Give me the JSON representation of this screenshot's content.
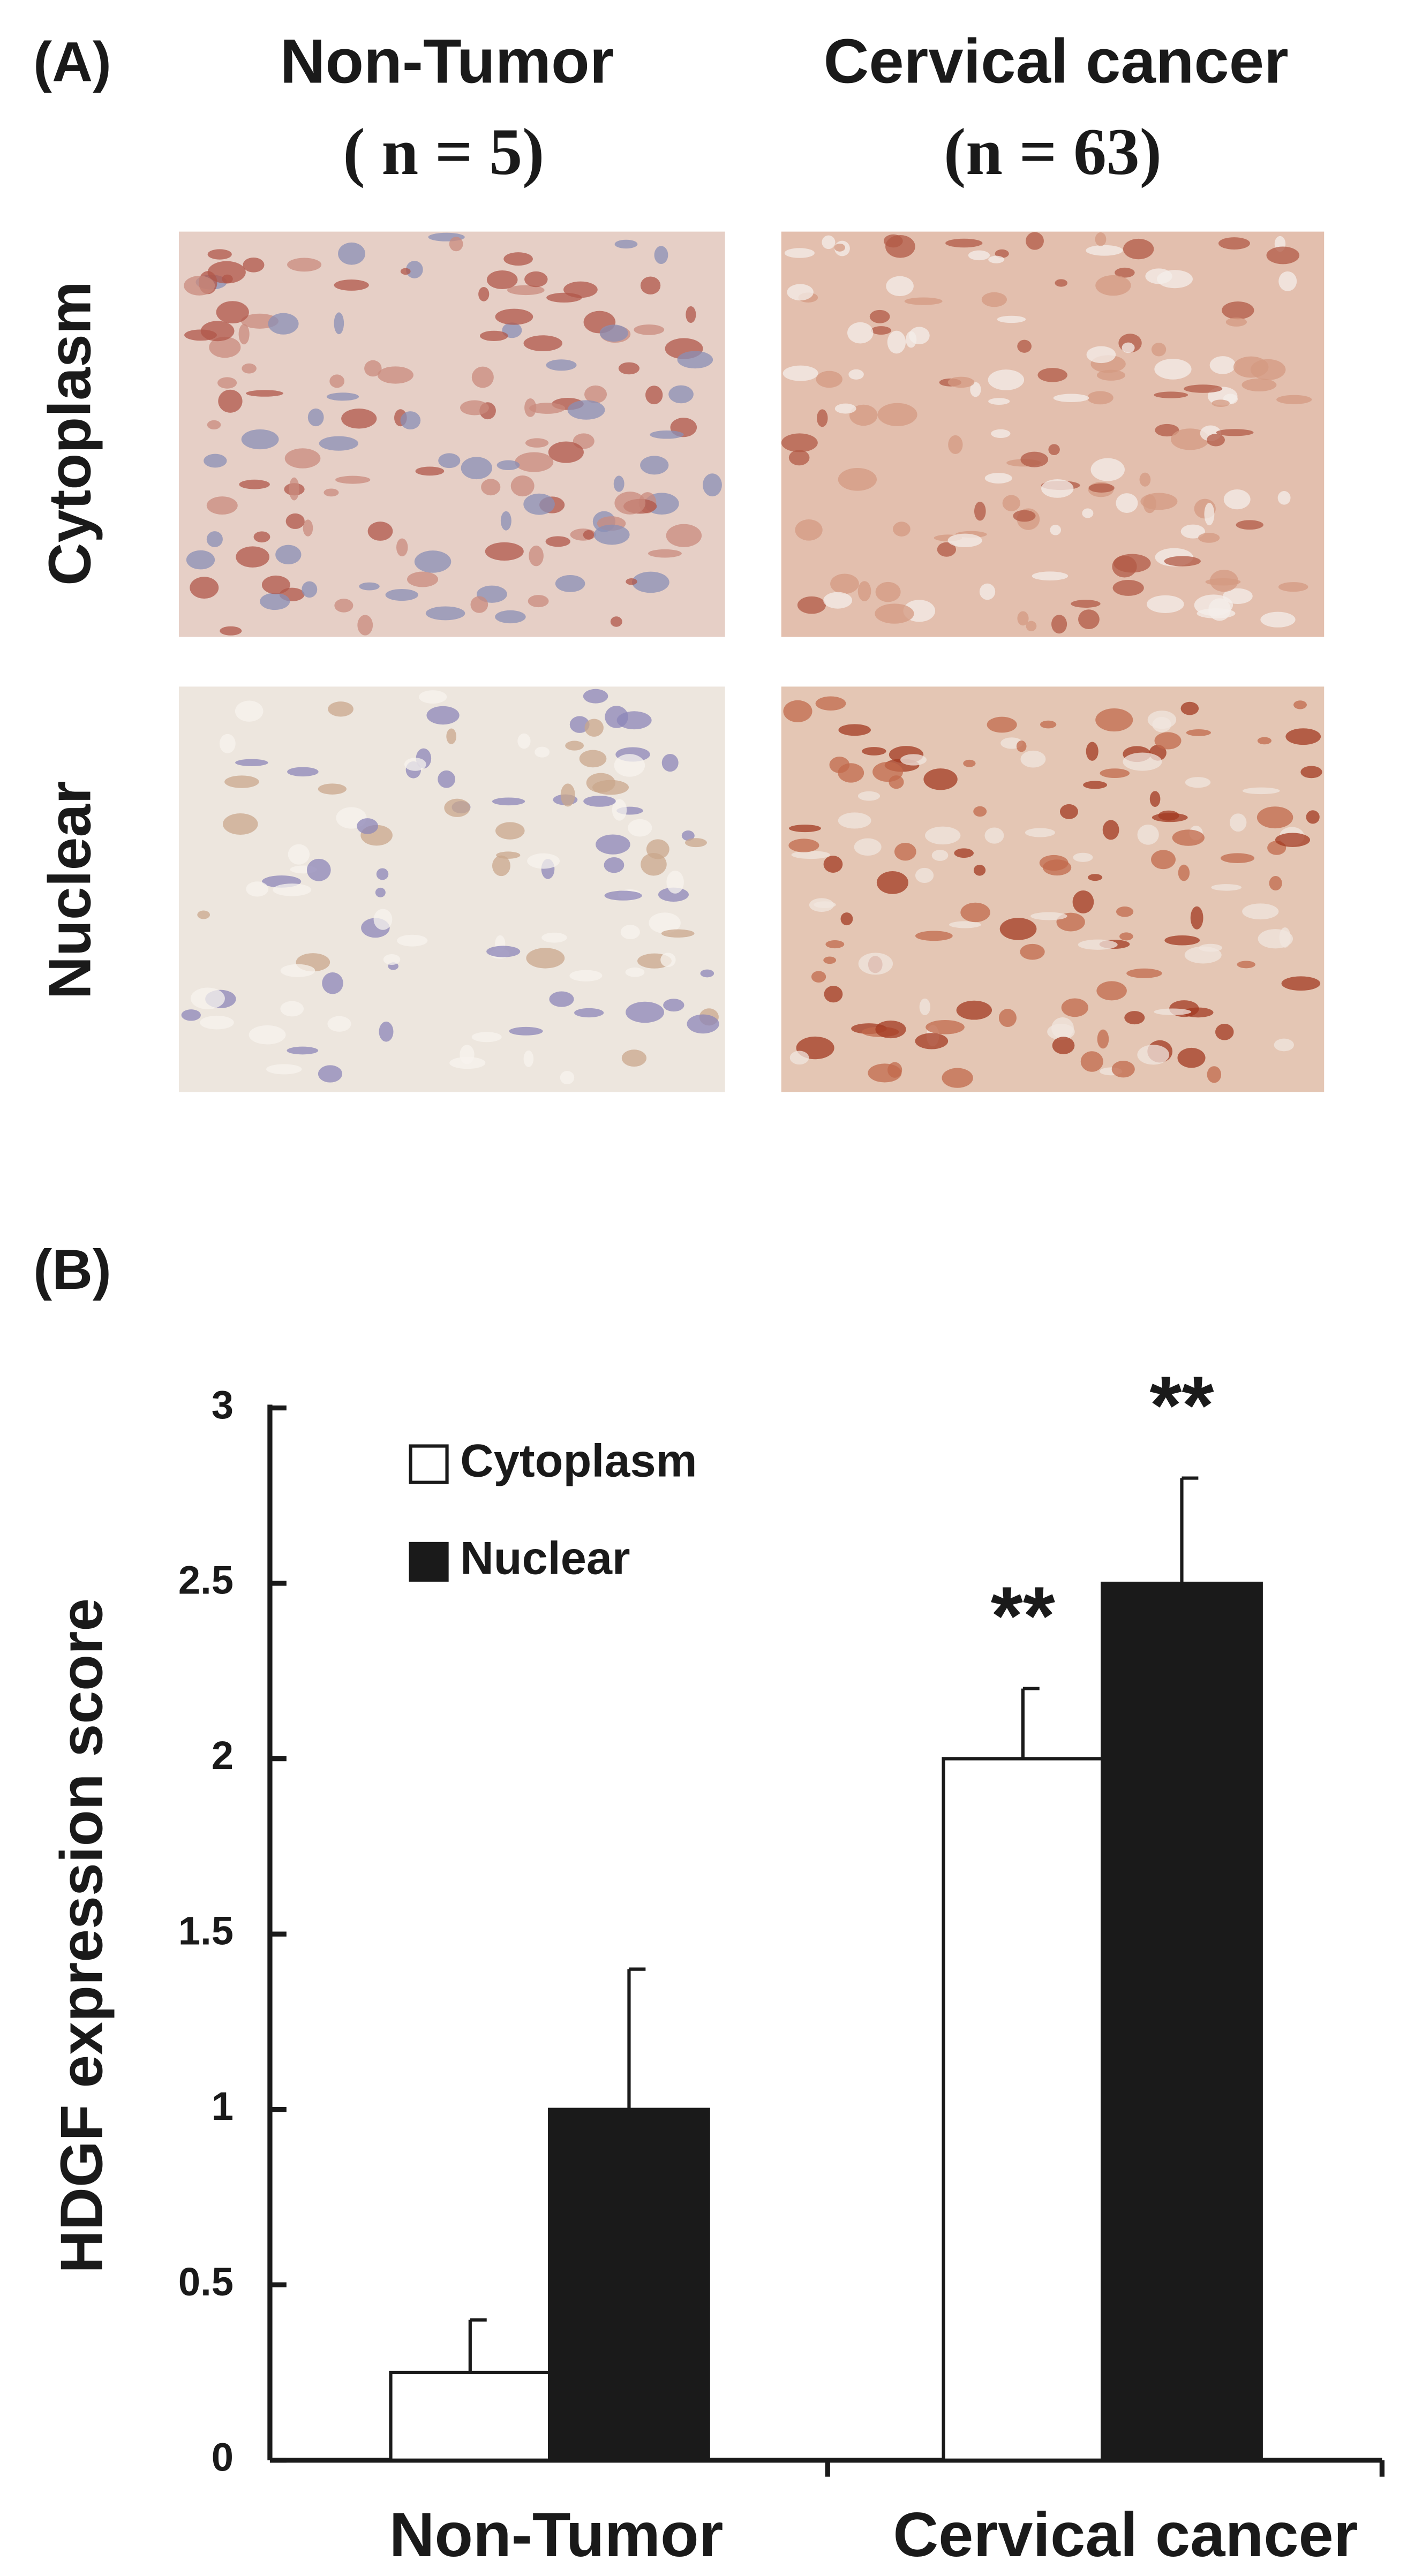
{
  "panel_a": {
    "label": "(A)",
    "columns": [
      "Non-Tumor",
      "Cervical cancer"
    ],
    "column_n": [
      "( n = 5)",
      "(n = 63)"
    ],
    "rows": [
      "Cytoplasm",
      "Nuclear"
    ]
  },
  "chart_data": {
    "type": "bar",
    "panel_label": "(B)",
    "ylabel": "HDGF expression score",
    "categories": [
      "Non-Tumor",
      "Cervical cancer"
    ],
    "series": [
      {
        "name": "Cytoplasm",
        "color": "#ffffff",
        "values": [
          0.25,
          2.0
        ],
        "errors": [
          0.15,
          0.2
        ],
        "significance": [
          null,
          "**"
        ]
      },
      {
        "name": "Nuclear",
        "color": "#1a1a1a",
        "values": [
          1.0,
          2.5
        ],
        "errors": [
          0.4,
          0.3
        ],
        "significance": [
          null,
          "**"
        ]
      }
    ],
    "ylim": [
      0,
      3
    ],
    "yticks": [
      0,
      0.5,
      1,
      1.5,
      2,
      2.5,
      3
    ],
    "legend": "upper left",
    "grid": false
  }
}
